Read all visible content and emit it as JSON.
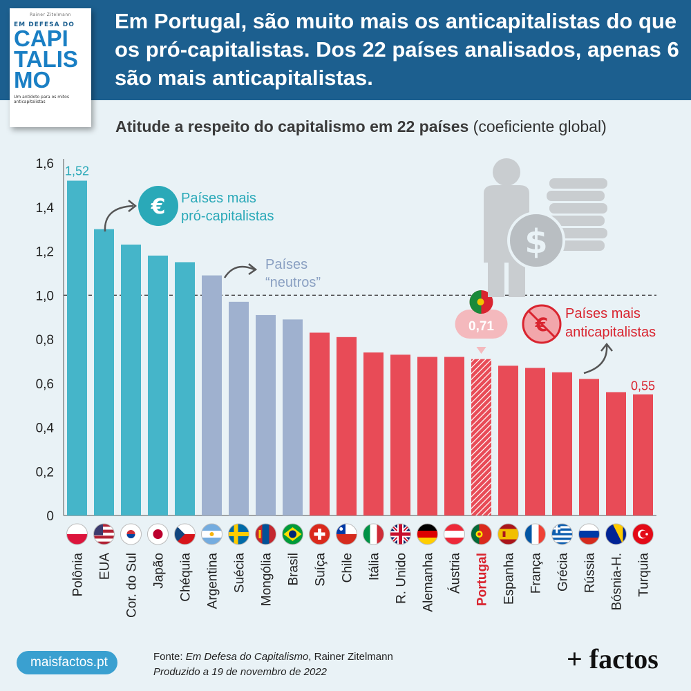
{
  "book": {
    "author": "Rainer Zitelmann",
    "top_line": "EM DEFESA DO",
    "big_lines": [
      "CAPI",
      "TALIS",
      "MO"
    ],
    "tagline": "Um antídoto para os mitos anticapitalistas"
  },
  "title": "Em Portugal, são muito mais os anticapitalistas do que os pró-capitalistas. Dos 22 países analisados, apenas 6 são mais anticapitalistas.",
  "subtitle": {
    "bold": "Atitude a respeito do capitalismo em 22 países",
    "normal": " (coeficiente global)"
  },
  "colors": {
    "pro": "#45b5c9",
    "neutral": "#9fb1cf",
    "anti": "#e84b57",
    "header": "#1c5f8f",
    "accent_pro": "#2aa9b8",
    "accent_neutral": "#8aa0c2",
    "accent_anti": "#d9242f"
  },
  "chart_data": {
    "type": "bar",
    "ylim": [
      0,
      1.6
    ],
    "yticks": [
      "0",
      "0,2",
      "0,4",
      "0,6",
      "0,8",
      "1,0",
      "1,2",
      "1,4",
      "1,6"
    ],
    "ytick_values": [
      0,
      0.2,
      0.4,
      0.6,
      0.8,
      1.0,
      1.2,
      1.4,
      1.6
    ],
    "reference_line": 1.0,
    "categories": [
      "Polônia",
      "EUA",
      "Cor. do Sul",
      "Japão",
      "Chéquia",
      "Argentina",
      "Suécia",
      "Mongólia",
      "Brasil",
      "Suíça",
      "Chile",
      "Itália",
      "R. Unido",
      "Alemanha",
      "Áustria",
      "Portugal",
      "Espanha",
      "França",
      "Grécia",
      "Rússia",
      "Bósnia-H.",
      "Turquia"
    ],
    "values": [
      1.52,
      1.3,
      1.23,
      1.18,
      1.15,
      1.09,
      0.97,
      0.91,
      0.89,
      0.83,
      0.81,
      0.74,
      0.73,
      0.72,
      0.72,
      0.71,
      0.68,
      0.67,
      0.65,
      0.62,
      0.56,
      0.55
    ],
    "groups": [
      "pro",
      "pro",
      "pro",
      "pro",
      "pro",
      "neutral",
      "neutral",
      "neutral",
      "neutral",
      "anti",
      "anti",
      "anti",
      "anti",
      "anti",
      "anti",
      "anti",
      "anti",
      "anti",
      "anti",
      "anti",
      "anti",
      "anti"
    ],
    "highlight": "Portugal",
    "data_labels": {
      "first": "1,52",
      "last": "0,55",
      "highlight": "0,71"
    },
    "flags": [
      "pl",
      "us",
      "kr",
      "jp",
      "cz",
      "ar",
      "se",
      "mn",
      "br",
      "ch",
      "cl",
      "it",
      "gb",
      "de",
      "at",
      "pt",
      "es",
      "fr",
      "gr",
      "ru",
      "ba",
      "tr"
    ],
    "annotations": {
      "pro": [
        "Países mais",
        "pró-capitalistas"
      ],
      "neutral": [
        "Países",
        "“neutros”"
      ],
      "anti": [
        "Países mais",
        "anticapitalistas"
      ]
    }
  },
  "footer": {
    "site": "maisfactos.pt",
    "source_prefix": "Fonte: ",
    "source_book": "Em Defesa do Capitalismo",
    "source_suffix": ", Rainer Zitelmann",
    "produced": "Produzido a 19 de novembro de 2022",
    "brand": "+ factos"
  }
}
